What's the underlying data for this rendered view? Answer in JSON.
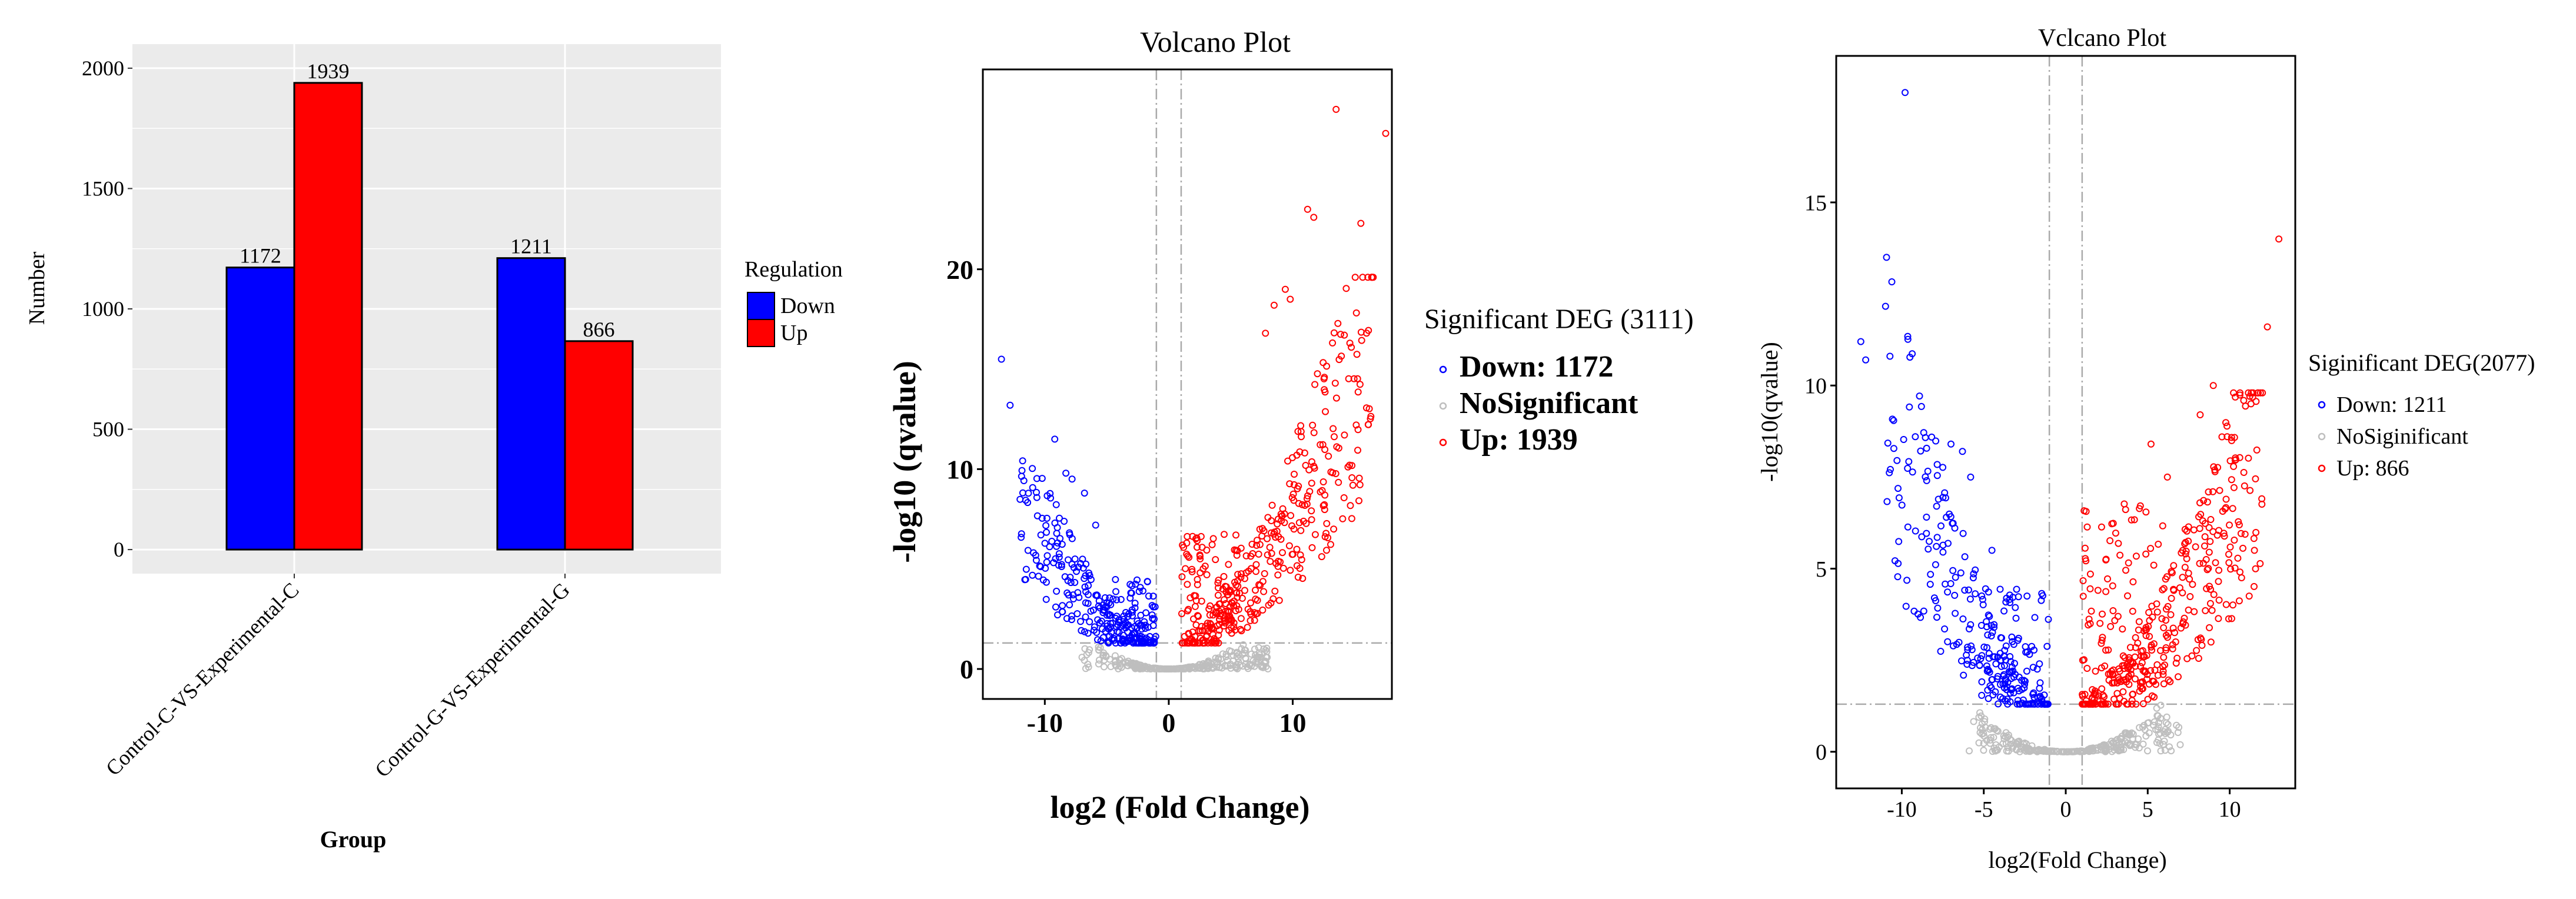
{
  "colors": {
    "down": "#0000ff",
    "up": "#ff0000",
    "nosig": "#bebebe",
    "panel_bg": "#ebebeb",
    "grid": "#ffffff"
  },
  "chart_data": [
    {
      "type": "bar",
      "title": "",
      "xlabel": "Group",
      "ylabel": "Number",
      "categories": [
        "Control-C-VS-Experimental-C",
        "Control-G-VS-Experimental-G"
      ],
      "series": [
        {
          "name": "Down",
          "values": [
            1172,
            1211
          ]
        },
        {
          "name": "Up",
          "values": [
            1939,
            866
          ]
        }
      ],
      "value_labels": [
        [
          "1172",
          "1211"
        ],
        [
          "1939",
          "866"
        ]
      ],
      "ylim": [
        -100,
        2100
      ],
      "yticks": [
        0,
        500,
        1000,
        1500,
        2000
      ],
      "ytick_labels": [
        "0",
        "500",
        "1000",
        "1500",
        "2000"
      ],
      "legend": {
        "title": "Regulation",
        "entries": [
          "Down",
          "Up"
        ],
        "placement": "right"
      },
      "grid": true
    },
    {
      "type": "scatter",
      "title": "Volcano Plot",
      "xlabel": "log2 (Fold Change)",
      "ylabel": "-log10 (qvalue)",
      "xlim": [
        -15,
        18
      ],
      "ylim": [
        -1.5,
        30
      ],
      "xticks": [
        -10,
        0,
        10
      ],
      "xtick_labels": [
        "-10",
        "0",
        "10"
      ],
      "yticks": [
        0,
        10,
        20
      ],
      "ytick_labels": [
        "0",
        "10",
        "20"
      ],
      "vlines": [
        -1,
        1
      ],
      "hline": 1.3,
      "legend": {
        "title": "Significant DEG (3111)",
        "entries": [
          "Down: 1172",
          "NoSignificant",
          "Up: 1939"
        ],
        "placement": "right"
      },
      "series": [
        {
          "name": "Down",
          "count": 1172,
          "x_range": [
            -13.5,
            -1
          ],
          "max_y": 15.5,
          "highlights": [
            [
              -13.5,
              15.5
            ],
            [
              -12.8,
              13.2
            ],
            [
              -9.2,
              11.5
            ],
            [
              -8.3,
              9.8
            ],
            [
              -7.8,
              9.5
            ],
            [
              -6.8,
              8.8
            ],
            [
              -5.9,
              7.2
            ]
          ]
        },
        {
          "name": "NoSignificant",
          "x_range": [
            -7,
            8
          ],
          "max_y": 1.3
        },
        {
          "name": "Up",
          "count": 1939,
          "x_range": [
            1,
            17.5
          ],
          "max_y": 28,
          "highlights": [
            [
              13.5,
              28
            ],
            [
              17.5,
              26.8
            ],
            [
              11.2,
              23
            ],
            [
              11.7,
              22.6
            ],
            [
              15.5,
              22.3
            ],
            [
              9.4,
              19
            ],
            [
              9.8,
              18.5
            ],
            [
              7.8,
              16.8
            ],
            [
              8.5,
              18.2
            ]
          ]
        }
      ]
    },
    {
      "type": "scatter",
      "title": "Vclcano Plot",
      "xlabel": "log2(Fold Change)",
      "ylabel": "-log10(qvalue)",
      "xlim": [
        -14,
        14
      ],
      "ylim": [
        -1,
        19
      ],
      "xticks": [
        -10,
        -5,
        0,
        5,
        10
      ],
      "xtick_labels": [
        "-10",
        "-5",
        "0",
        "5",
        "10"
      ],
      "yticks": [
        0,
        5,
        10,
        15
      ],
      "ytick_labels": [
        "0",
        "5",
        "10",
        "15"
      ],
      "vlines": [
        -1,
        1
      ],
      "hline": 1.3,
      "legend": {
        "title": "Siginificant DEG(2077)",
        "entries": [
          "Down: 1211",
          "NoSiginificant",
          "Up: 866"
        ],
        "placement": "right"
      },
      "series": [
        {
          "name": "Down",
          "count": 1211,
          "x_range": [
            -12.5,
            -1
          ],
          "max_y": 18,
          "highlights": [
            [
              -9.8,
              18
            ],
            [
              -12.5,
              11.2
            ],
            [
              -12.2,
              10.7
            ],
            [
              -7,
              8.4
            ],
            [
              -6.3,
              8.2
            ],
            [
              -5.8,
              7.5
            ],
            [
              -4.5,
              5.5
            ]
          ]
        },
        {
          "name": "NoSiginificant",
          "x_range": [
            -6,
            7
          ],
          "max_y": 1.3
        },
        {
          "name": "Up",
          "count": 866,
          "x_range": [
            1,
            13
          ],
          "max_y": 14,
          "highlights": [
            [
              13,
              14
            ],
            [
              12.3,
              11.6
            ],
            [
              9,
              10
            ],
            [
              11.3,
              9.5
            ],
            [
              8.2,
              9.2
            ],
            [
              5.2,
              8.4
            ],
            [
              6.2,
              7.5
            ]
          ]
        }
      ]
    }
  ]
}
